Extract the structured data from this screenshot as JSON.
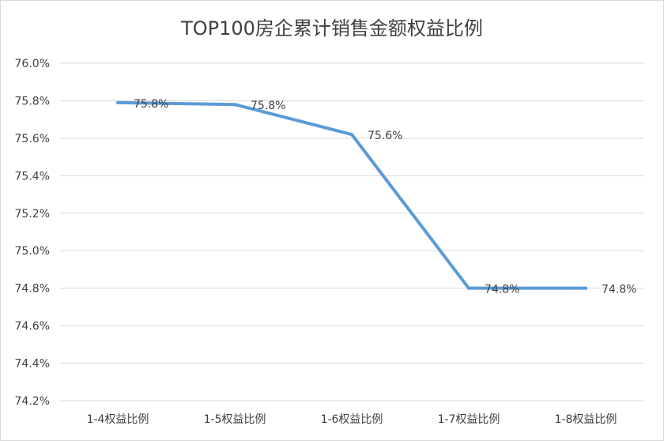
{
  "chart_data": {
    "type": "line",
    "title": "TOP100房企累计销售金额权益比例",
    "xlabel": "",
    "ylabel": "",
    "categories": [
      "1-4权益比例",
      "1-5权益比例",
      "1-6权益比例",
      "1-7权益比例",
      "1-8权益比例"
    ],
    "series": [
      {
        "values": [
          75.79,
          75.78,
          75.62,
          74.8,
          74.8
        ],
        "data_labels": [
          "75.8%",
          "75.8%",
          "75.6%",
          "74.8%",
          "74.8%"
        ],
        "color": "#5b9bd5"
      }
    ],
    "ylim": [
      74.2,
      76.0
    ],
    "yticks": [
      "76.0%",
      "75.8%",
      "75.6%",
      "75.4%",
      "75.2%",
      "75.0%",
      "74.8%",
      "74.6%",
      "74.4%",
      "74.2%"
    ],
    "grid": true,
    "legend": "none"
  }
}
